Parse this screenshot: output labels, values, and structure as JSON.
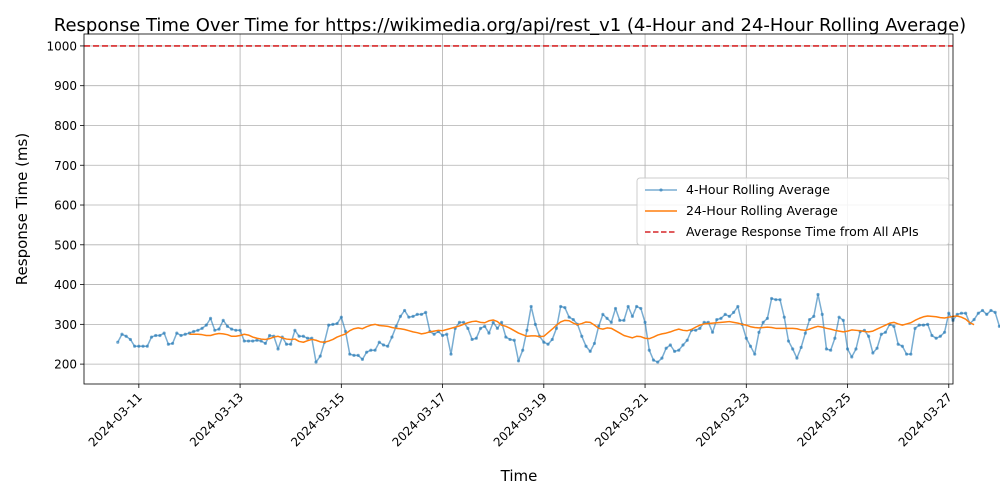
{
  "chart_data": {
    "type": "line",
    "title": "Response Time Over Time for https://wikimedia.org/api/rest_v1 (4-Hour and 24-Hour Rolling Average)",
    "xlabel": "Time",
    "ylabel": "Response Time (ms)",
    "xlim": [
      "2024-03-09T22:00",
      "2024-03-27T02:00"
    ],
    "ylim": [
      150,
      1030
    ],
    "x_ticks": [
      "2024-03-11",
      "2024-03-13",
      "2024-03-15",
      "2024-03-17",
      "2024-03-19",
      "2024-03-21",
      "2024-03-23",
      "2024-03-25",
      "2024-03-27"
    ],
    "y_ticks": [
      200,
      300,
      400,
      500,
      600,
      700,
      800,
      900,
      1000
    ],
    "grid": true,
    "legend_position": "center-right",
    "reference_line": {
      "name": "Average Response Time from All APIs",
      "value": 1000,
      "color": "#d62728",
      "style": "dashed"
    },
    "series": [
      {
        "name": "4-Hour Rolling Average",
        "color": "#1f77b4",
        "start": "2024-03-10T14:00",
        "interval_hours": 2,
        "values": [
          255,
          275,
          270,
          262,
          245,
          245,
          245,
          245,
          268,
          272,
          272,
          278,
          250,
          252,
          278,
          272,
          275,
          278,
          282,
          285,
          290,
          298,
          315,
          285,
          288,
          310,
          295,
          288,
          285,
          285,
          258,
          258,
          258,
          260,
          258,
          252,
          272,
          270,
          238,
          268,
          250,
          250,
          285,
          270,
          270,
          265,
          265,
          205,
          220,
          255,
          298,
          300,
          302,
          318,
          282,
          225,
          222,
          222,
          212,
          230,
          235,
          235,
          255,
          248,
          245,
          268,
          295,
          320,
          335,
          318,
          320,
          325,
          325,
          330,
          282,
          275,
          282,
          272,
          275,
          225,
          290,
          305,
          305,
          290,
          262,
          265,
          290,
          295,
          278,
          305,
          290,
          305,
          268,
          262,
          260,
          208,
          235,
          285,
          345,
          300,
          270,
          255,
          250,
          262,
          290,
          345,
          342,
          318,
          312,
          300,
          270,
          245,
          232,
          252,
          295,
          325,
          315,
          305,
          340,
          310,
          310,
          345,
          320,
          345,
          340,
          305,
          235,
          210,
          205,
          215,
          240,
          248,
          232,
          235,
          248,
          260,
          285,
          285,
          290,
          305,
          305,
          280,
          312,
          315,
          325,
          320,
          330,
          345,
          300,
          265,
          245,
          225,
          280,
          305,
          315,
          365,
          362,
          362,
          318,
          258,
          238,
          215,
          242,
          278,
          312,
          320,
          375,
          325,
          238,
          235,
          265,
          318,
          310,
          238,
          218,
          238,
          282,
          285,
          270,
          228,
          240,
          275,
          280,
          300,
          295,
          250,
          245,
          225,
          225,
          290,
          298,
          298,
          300,
          272,
          265,
          270,
          280,
          328,
          310,
          325,
          328,
          328,
          302,
          312,
          328,
          335,
          325,
          335,
          330,
          295,
          290,
          258,
          272,
          245,
          245,
          260,
          285,
          295,
          302,
          302,
          278,
          285,
          280,
          298,
          305,
          305,
          305,
          305,
          305,
          330,
          330,
          318,
          300,
          298,
          288,
          275,
          268,
          285,
          280,
          270,
          235,
          195,
          225,
          258,
          295,
          352,
          320,
          270,
          250,
          262,
          265,
          265,
          285,
          288,
          310,
          320,
          330,
          312,
          280,
          280,
          280,
          320,
          320,
          328,
          330,
          338,
          305,
          295,
          290,
          280,
          318,
          318,
          360,
          365,
          370,
          345,
          345,
          340,
          310,
          295,
          290,
          290,
          310,
          322,
          330,
          310,
          250,
          205,
          200,
          195
        ]
      },
      {
        "name": "24-Hour Rolling Average",
        "color": "#ff7f0e",
        "start": "2024-03-12T00:00",
        "interval_hours": 2,
        "values": [
          275,
          275,
          275,
          274,
          272,
          272,
          275,
          277,
          276,
          274,
          270,
          270,
          272,
          275,
          273,
          268,
          265,
          263,
          262,
          264,
          268,
          270,
          266,
          263,
          262,
          263,
          257,
          255,
          259,
          262,
          260,
          256,
          255,
          258,
          262,
          268,
          272,
          276,
          284,
          289,
          291,
          289,
          294,
          298,
          300,
          297,
          296,
          295,
          292,
          290,
          289,
          287,
          284,
          281,
          279,
          276,
          278,
          281,
          283,
          285,
          284,
          287,
          290,
          293,
          296,
          300,
          304,
          307,
          308,
          305,
          304,
          309,
          311,
          307,
          298,
          295,
          290,
          284,
          278,
          274,
          270,
          271,
          271,
          269,
          270,
          279,
          288,
          298,
          306,
          310,
          309,
          303,
          299,
          302,
          306,
          305,
          298,
          290,
          288,
          291,
          290,
          284,
          278,
          272,
          269,
          266,
          270,
          269,
          265,
          264,
          268,
          273,
          276,
          278,
          281,
          285,
          288,
          285,
          284,
          287,
          293,
          298,
          301,
          302,
          303,
          304,
          305,
          306,
          307,
          305,
          303,
          300,
          298,
          294,
          292,
          291,
          292,
          293,
          292,
          290,
          290,
          290,
          290,
          290,
          289,
          286,
          285,
          288,
          292,
          295,
          293,
          290,
          288,
          285,
          283,
          281,
          283,
          286,
          285,
          284,
          282,
          281,
          283,
          288,
          293,
          298,
          303,
          305,
          301,
          298,
          301,
          304,
          310,
          315,
          319,
          321,
          320,
          319,
          317,
          316,
          318,
          320,
          321,
          318,
          313,
          304,
          299
        ]
      }
    ]
  }
}
